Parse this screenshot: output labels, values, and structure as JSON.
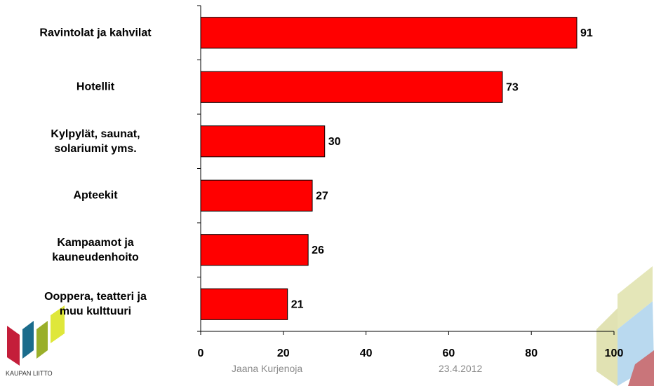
{
  "chart_data": {
    "type": "bar",
    "orientation": "horizontal",
    "categories": [
      "Ravintolat ja kahvilat",
      "Hotellit",
      "Kylpylät, saunat,\nsolariumit yms.",
      "Apteekit",
      "Kampaamot ja\nkauneudenhoito",
      "Ooppera, teatteri ja\nmuu kulttuuri"
    ],
    "values": [
      91,
      73,
      30,
      27,
      26,
      21
    ],
    "color": "#ff0000",
    "xlim": [
      0,
      100
    ],
    "xticks": [
      0,
      20,
      40,
      60,
      80,
      100
    ],
    "grid": false
  },
  "footer": {
    "author": "Jaana Kurjenoja",
    "date": "23.4.2012",
    "logo_text": "KAUPAN LIITTO"
  }
}
